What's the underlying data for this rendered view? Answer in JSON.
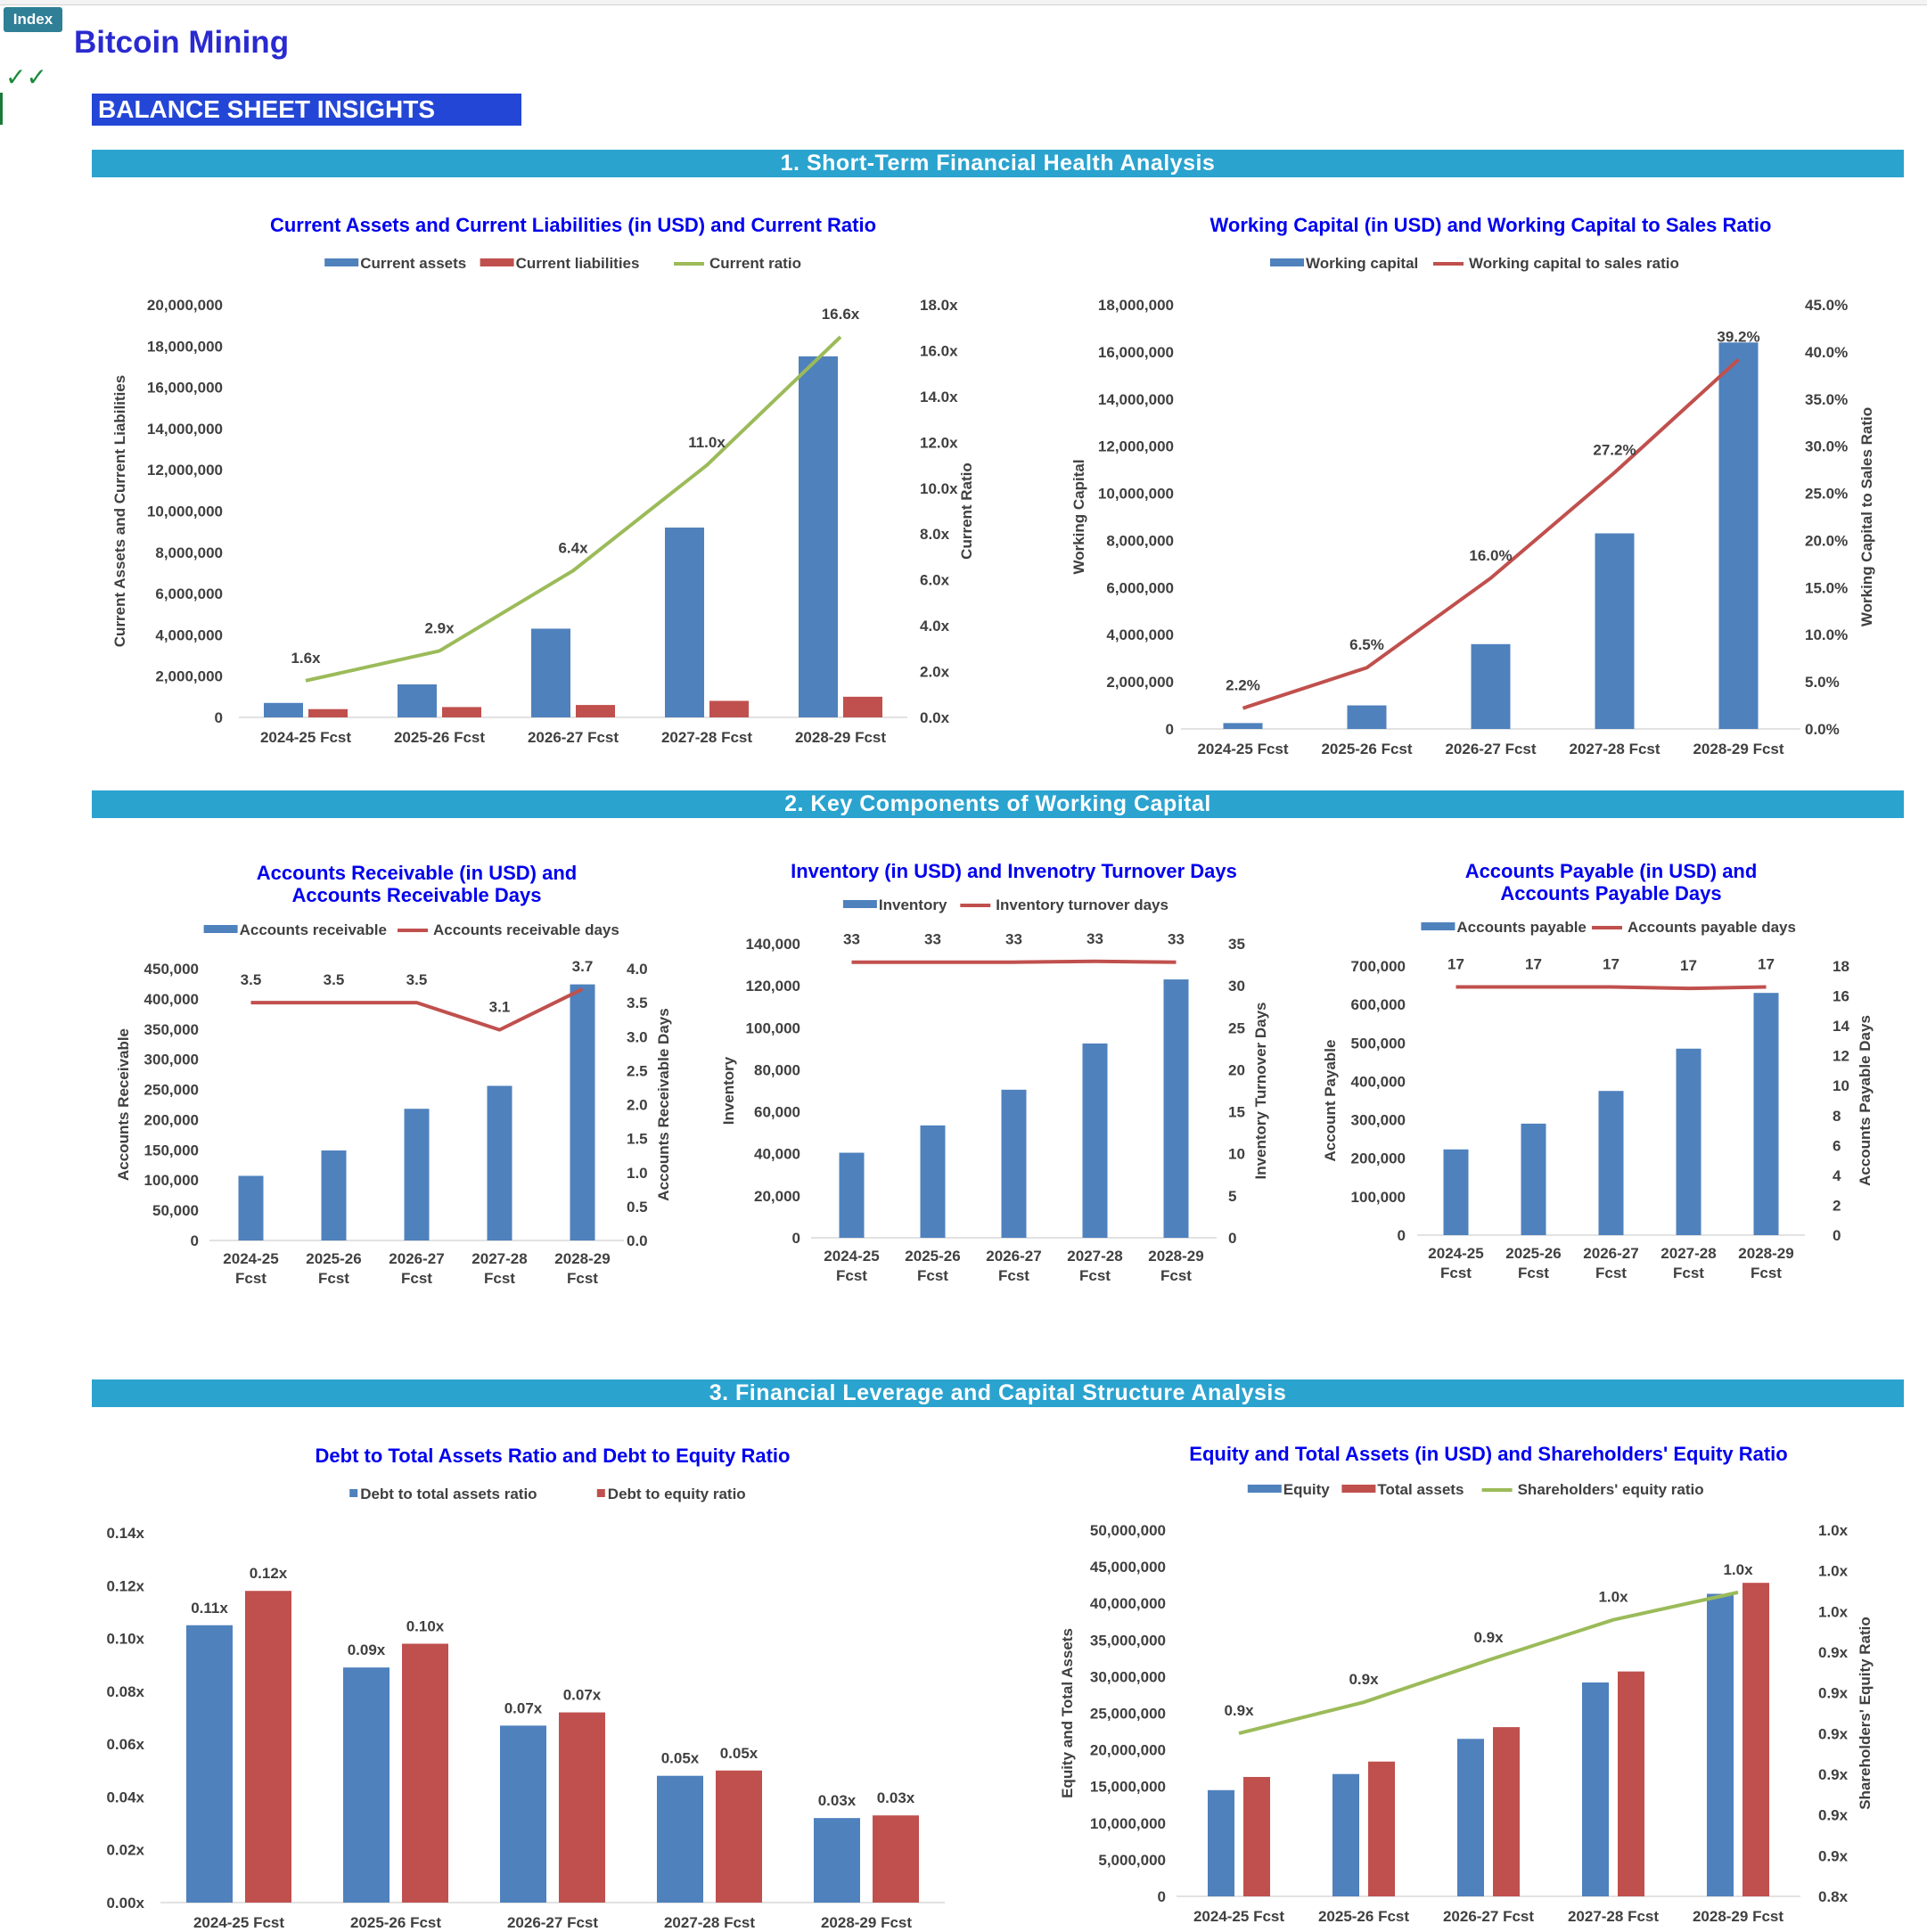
{
  "header": {
    "index_button": "Index",
    "checkmarks": "✓✓",
    "title": "Bitcoin Mining",
    "subtitle": "BALANCE SHEET INSIGHTS"
  },
  "sections": [
    "1. Short-Term Financial Health Analysis",
    "2. Key Components of Working Capital",
    "3. Financial Leverage and Capital Structure Analysis"
  ],
  "colors": {
    "blue": "#4f81bd",
    "red": "#c0504d",
    "green": "#9bbb59",
    "title": "#0000ee",
    "section": "#2aa3cf"
  },
  "chart_data": [
    {
      "id": "current",
      "type": "bar",
      "title": "Current Assets and Current Liabilities (in USD) and Current Ratio",
      "categories": [
        "2024-25 Fcst",
        "2025-26 Fcst",
        "2026-27 Fcst",
        "2027-28 Fcst",
        "2028-29 Fcst"
      ],
      "series": [
        {
          "name": "Current assets",
          "type": "bar",
          "axis": "left",
          "color": "#4f81bd",
          "values": [
            700000,
            1600000,
            4300000,
            9200000,
            17500000
          ]
        },
        {
          "name": "Current liabilities",
          "type": "bar",
          "axis": "left",
          "color": "#c0504d",
          "values": [
            400000,
            500000,
            600000,
            800000,
            1000000
          ]
        },
        {
          "name": "Current ratio",
          "type": "line",
          "axis": "right",
          "color": "#9bbb59",
          "values": [
            1.6,
            2.9,
            6.4,
            11.0,
            16.6
          ],
          "labels": [
            "1.6x",
            "2.9x",
            "6.4x",
            "11.0x",
            "16.6x"
          ]
        }
      ],
      "y_left": {
        "label": "Current Assets and Current Liabilities",
        "min": 0,
        "max": 20000000,
        "ticks": [
          "0",
          "2,000,000",
          "4,000,000",
          "6,000,000",
          "8,000,000",
          "10,000,000",
          "12,000,000",
          "14,000,000",
          "16,000,000",
          "18,000,000",
          "20,000,000"
        ]
      },
      "y_right": {
        "label": "Current Ratio",
        "min": 0,
        "max": 18,
        "ticks": [
          "0.0x",
          "2.0x",
          "4.0x",
          "6.0x",
          "8.0x",
          "10.0x",
          "12.0x",
          "14.0x",
          "16.0x",
          "18.0x"
        ]
      },
      "legend": "top"
    },
    {
      "id": "wc",
      "type": "bar",
      "title": "Working Capital (in USD) and Working Capital to Sales Ratio",
      "categories": [
        "2024-25 Fcst",
        "2025-26 Fcst",
        "2026-27 Fcst",
        "2027-28 Fcst",
        "2028-29 Fcst"
      ],
      "series": [
        {
          "name": "Working capital",
          "type": "bar",
          "axis": "left",
          "color": "#4f81bd",
          "values": [
            250000,
            1000000,
            3600000,
            8300000,
            16400000
          ]
        },
        {
          "name": "Working capital to sales ratio",
          "type": "line",
          "axis": "right",
          "color": "#c0504d",
          "values": [
            2.2,
            6.5,
            16.0,
            27.2,
            39.2
          ],
          "labels": [
            "2.2%",
            "6.5%",
            "16.0%",
            "27.2%",
            "39.2%"
          ]
        }
      ],
      "y_left": {
        "label": "Working Capital",
        "min": 0,
        "max": 18000000,
        "ticks": [
          "0",
          "2,000,000",
          "4,000,000",
          "6,000,000",
          "8,000,000",
          "10,000,000",
          "12,000,000",
          "14,000,000",
          "16,000,000",
          "18,000,000"
        ]
      },
      "y_right": {
        "label": "Working Capital to Sales Ratio",
        "min": 0,
        "max": 45,
        "ticks": [
          "0.0%",
          "5.0%",
          "10.0%",
          "15.0%",
          "20.0%",
          "25.0%",
          "30.0%",
          "35.0%",
          "40.0%",
          "45.0%"
        ]
      },
      "legend": "top"
    },
    {
      "id": "ar",
      "type": "bar",
      "title": "Accounts Receivable (in USD) and Accounts Receivable Days",
      "categories": [
        "2024-25 Fcst",
        "2025-26 Fcst",
        "2026-27 Fcst",
        "2027-28 Fcst",
        "2028-29 Fcst"
      ],
      "series": [
        {
          "name": "Accounts receivable",
          "type": "bar",
          "axis": "left",
          "color": "#4f81bd",
          "values": [
            107000,
            149000,
            218000,
            256000,
            424000
          ]
        },
        {
          "name": "Accounts receivable days",
          "type": "line",
          "axis": "right",
          "color": "#c0504d",
          "values": [
            3.5,
            3.5,
            3.5,
            3.1,
            3.7
          ],
          "labels": [
            "3.5",
            "3.5",
            "3.5",
            "3.1",
            "3.7"
          ]
        }
      ],
      "y_left": {
        "label": "Accounts Receivable",
        "min": 0,
        "max": 450000,
        "ticks": [
          "0",
          "50,000",
          "100,000",
          "150,000",
          "200,000",
          "250,000",
          "300,000",
          "350,000",
          "400,000",
          "450,000"
        ]
      },
      "y_right": {
        "label": "Accounts Receivable Days",
        "min": 0,
        "max": 4,
        "ticks": [
          "0.0",
          "0.5",
          "1.0",
          "1.5",
          "2.0",
          "2.5",
          "3.0",
          "3.5",
          "4.0"
        ]
      },
      "legend": "top"
    },
    {
      "id": "inv",
      "type": "bar",
      "title": "Inventory (in USD) and Invenotry Turnover Days",
      "categories": [
        "2024-25 Fcst",
        "2025-26 Fcst",
        "2026-27 Fcst",
        "2027-28 Fcst",
        "2028-29 Fcst"
      ],
      "series": [
        {
          "name": "Inventory",
          "type": "bar",
          "axis": "left",
          "color": "#4f81bd",
          "values": [
            40500,
            53500,
            70500,
            92500,
            123000
          ]
        },
        {
          "name": "Inventory turnover days",
          "type": "line",
          "axis": "right",
          "color": "#c0504d",
          "values": [
            32.8,
            32.8,
            32.8,
            32.9,
            32.8
          ],
          "labels": [
            "33",
            "33",
            "33",
            "33",
            "33"
          ]
        }
      ],
      "y_left": {
        "label": "Inventory",
        "min": 0,
        "max": 140000,
        "ticks": [
          "0",
          "20,000",
          "40,000",
          "60,000",
          "80,000",
          "100,000",
          "120,000",
          "140,000"
        ]
      },
      "y_right": {
        "label": "Inventory Turnover Days",
        "min": 0,
        "max": 35,
        "ticks": [
          "0",
          "5",
          "10",
          "15",
          "20",
          "25",
          "30",
          "35"
        ]
      },
      "legend": "top"
    },
    {
      "id": "ap",
      "type": "bar",
      "title": "Accounts Payable (in USD) and Accounts Payable Days",
      "categories": [
        "2024-25 Fcst",
        "2025-26 Fcst",
        "2026-27 Fcst",
        "2027-28 Fcst",
        "2028-29 Fcst"
      ],
      "series": [
        {
          "name": "Accounts payable",
          "type": "bar",
          "axis": "left",
          "color": "#4f81bd",
          "values": [
            223000,
            290000,
            375000,
            485000,
            630000
          ]
        },
        {
          "name": "Accounts payable days",
          "type": "line",
          "axis": "right",
          "color": "#c0504d",
          "values": [
            16.6,
            16.6,
            16.6,
            16.5,
            16.6
          ],
          "labels": [
            "17",
            "17",
            "17",
            "17",
            "17"
          ]
        }
      ],
      "y_left": {
        "label": "Account Payable",
        "min": 0,
        "max": 700000,
        "ticks": [
          "0",
          "100,000",
          "200,000",
          "300,000",
          "400,000",
          "500,000",
          "600,000",
          "700,000"
        ]
      },
      "y_right": {
        "label": "Accounts Payable Days",
        "min": 0,
        "max": 18,
        "ticks": [
          "0",
          "2",
          "4",
          "6",
          "8",
          "10",
          "12",
          "14",
          "16",
          "18"
        ]
      },
      "legend": "top"
    },
    {
      "id": "debt",
      "type": "bar",
      "title": "Debt to Total Assets Ratio and Debt to Equity Ratio",
      "categories": [
        "2024-25 Fcst",
        "2025-26 Fcst",
        "2026-27 Fcst",
        "2027-28 Fcst",
        "2028-29 Fcst"
      ],
      "series": [
        {
          "name": "Debt to total assets ratio",
          "type": "bar",
          "axis": "left",
          "color": "#4f81bd",
          "values": [
            0.105,
            0.089,
            0.067,
            0.048,
            0.032
          ],
          "labels": [
            "0.11x",
            "0.09x",
            "0.07x",
            "0.05x",
            "0.03x"
          ]
        },
        {
          "name": "Debt to equity ratio",
          "type": "bar",
          "axis": "left",
          "color": "#c0504d",
          "values": [
            0.118,
            0.098,
            0.072,
            0.05,
            0.033
          ],
          "labels": [
            "0.12x",
            "0.10x",
            "0.07x",
            "0.05x",
            "0.03x"
          ]
        }
      ],
      "y_left": {
        "label": "",
        "min": 0,
        "max": 0.14,
        "ticks": [
          "0.00x",
          "0.02x",
          "0.04x",
          "0.06x",
          "0.08x",
          "0.10x",
          "0.12x",
          "0.14x"
        ]
      },
      "legend": "top"
    },
    {
      "id": "equity",
      "type": "bar",
      "title": "Equity and Total Assets (in USD) and Shareholders' Equity Ratio",
      "categories": [
        "2024-25 Fcst",
        "2025-26 Fcst",
        "2026-27 Fcst",
        "2027-28 Fcst",
        "2028-29 Fcst"
      ],
      "series": [
        {
          "name": "Equity",
          "type": "bar",
          "axis": "left",
          "color": "#4f81bd",
          "values": [
            14500000,
            16700000,
            21500000,
            29200000,
            41300000
          ]
        },
        {
          "name": "Total assets",
          "type": "bar",
          "axis": "left",
          "color": "#c0504d",
          "values": [
            16300000,
            18400000,
            23100000,
            30700000,
            42800000
          ]
        },
        {
          "name": "Shareholders' equity ratio",
          "type": "line",
          "axis": "right",
          "color": "#9bbb59",
          "values": [
            0.889,
            0.906,
            0.929,
            0.951,
            0.966
          ],
          "labels": [
            "0.9x",
            "0.9x",
            "0.9x",
            "1.0x",
            "1.0x"
          ]
        }
      ],
      "y_left": {
        "label": "Equity and Total Assets",
        "min": 0,
        "max": 50000000,
        "ticks": [
          "0",
          "5,000,000",
          "10,000,000",
          "15,000,000",
          "20,000,000",
          "25,000,000",
          "30,000,000",
          "35,000,000",
          "40,000,000",
          "45,000,000",
          "50,000,000"
        ]
      },
      "y_right": {
        "label": "Shareholders' Equity  Ratio",
        "min": 0.8,
        "max": 1.0,
        "ticks": [
          "0.8x",
          "0.9x",
          "0.9x",
          "0.9x",
          "0.9x",
          "0.9x",
          "0.9x",
          "1.0x",
          "1.0x",
          "1.0x"
        ]
      },
      "legend": "top"
    }
  ]
}
